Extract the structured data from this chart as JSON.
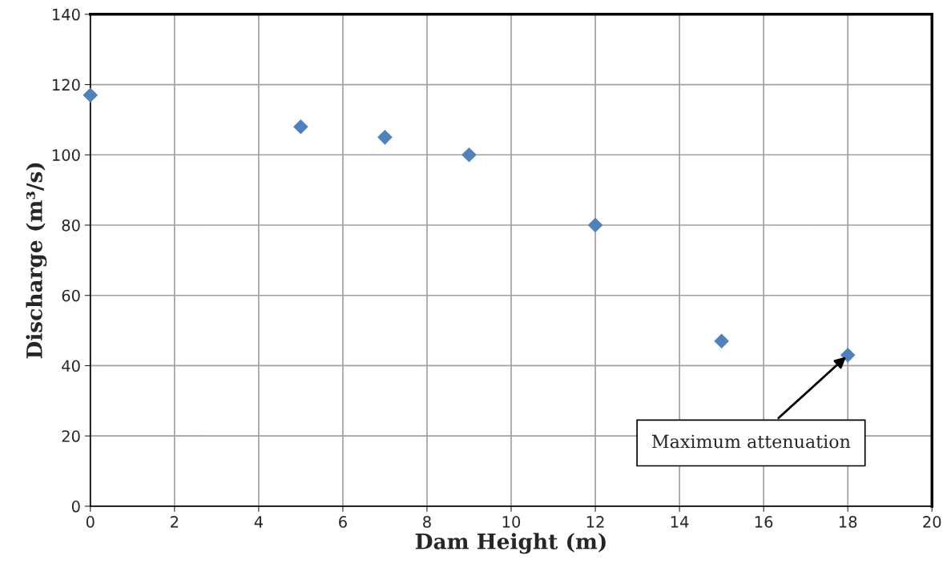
{
  "chart_data": {
    "type": "scatter",
    "xlabel": "Dam Height (m)",
    "ylabel": "Discharge (m³/s)",
    "x": [
      0,
      5,
      7,
      9,
      12,
      15,
      18
    ],
    "series": [
      {
        "color": "#4f81bd",
        "values": [
          117,
          108,
          105,
          100,
          80,
          47,
          43
        ]
      }
    ],
    "marker": "diamond",
    "grid": true,
    "xlim": [
      0,
      20
    ],
    "xticks": [
      0,
      2,
      4,
      6,
      8,
      10,
      12,
      14,
      16,
      18,
      20
    ],
    "ylim": [
      0,
      140
    ],
    "yticks": [
      0,
      20,
      40,
      60,
      80,
      100,
      120,
      140
    ],
    "annotations": [
      {
        "text": "Maximum attenuation",
        "x": 18,
        "y": 43
      }
    ]
  }
}
